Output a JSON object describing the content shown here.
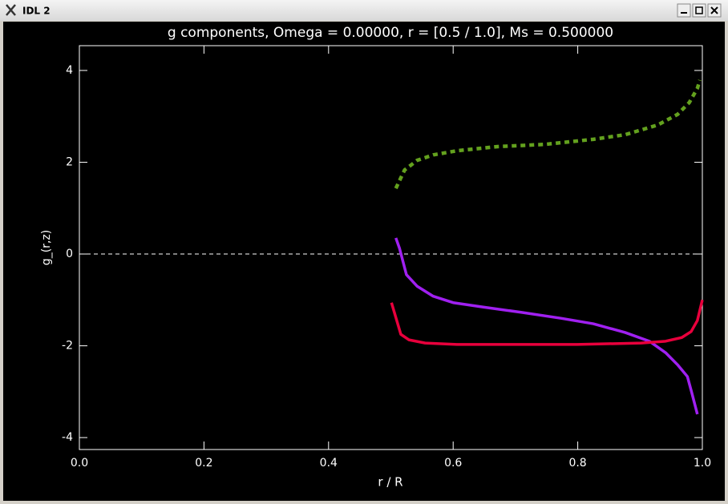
{
  "window": {
    "title": "IDL 2"
  },
  "chart_data": {
    "type": "line",
    "title": "g components, Omega =  0.00000, r = [0.5 / 1.0], Ms =  0.500000",
    "x_label": "r / R",
    "y_label": "g_(r,z)",
    "xlim": [
      0,
      1
    ],
    "ylim": [
      -4.26,
      4.54
    ],
    "xticks": [
      {
        "value": 0,
        "label": "0.0"
      },
      0.2,
      0.4,
      0.6,
      0.8,
      {
        "value": 1,
        "label": "1.0"
      }
    ],
    "yticks": [
      -4,
      -2,
      0,
      2,
      4
    ],
    "hline": 0,
    "series": [
      {
        "color": "#63a11e",
        "style": "dashed",
        "x": [
          0.508,
          0.522,
          0.542,
          0.568,
          0.606,
          0.671,
          0.748,
          0.825,
          0.876,
          0.928,
          0.96,
          0.979,
          0.992,
          0.996
        ],
        "values": [
          1.43,
          1.83,
          2.04,
          2.16,
          2.25,
          2.34,
          2.39,
          2.5,
          2.6,
          2.81,
          3.04,
          3.3,
          3.61,
          3.79
        ]
      },
      {
        "color": "#a020f0",
        "style": "solid",
        "x": [
          0.508,
          0.514,
          0.525,
          0.542,
          0.568,
          0.6,
          0.645,
          0.709,
          0.773,
          0.825,
          0.876,
          0.915,
          0.941,
          0.96,
          0.976,
          0.983,
          0.992
        ],
        "values": [
          0.35,
          0.12,
          -0.45,
          -0.7,
          -0.92,
          -1.06,
          -1.15,
          -1.27,
          -1.4,
          -1.52,
          -1.71,
          -1.9,
          -2.15,
          -2.41,
          -2.67,
          -3.02,
          -3.49
        ]
      },
      {
        "color": "#e8003c",
        "style": "solid",
        "x": [
          0.501,
          0.516,
          0.529,
          0.555,
          0.606,
          0.709,
          0.799,
          0.902,
          0.941,
          0.967,
          0.982,
          0.992,
          1.0
        ],
        "values": [
          -1.06,
          -1.75,
          -1.87,
          -1.94,
          -1.97,
          -1.97,
          -1.97,
          -1.94,
          -1.9,
          -1.82,
          -1.69,
          -1.45,
          -1.0
        ]
      }
    ]
  }
}
